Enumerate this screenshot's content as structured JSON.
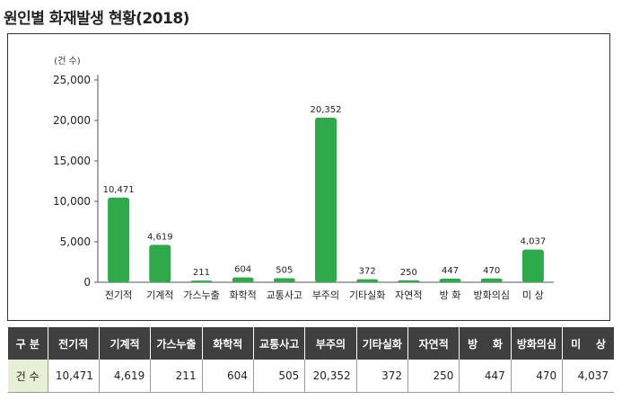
{
  "page": {
    "title": "원인별 화재발생 현황(2018)"
  },
  "chart_data": {
    "type": "bar",
    "title": "",
    "unit_label": "(건 수)",
    "xlabel": "",
    "ylabel": "",
    "categories": [
      "전기적",
      "기계적",
      "가스누출",
      "화학적",
      "교통사고",
      "부주의",
      "기타실화",
      "자연적",
      "방 화",
      "방화의심",
      "미 상"
    ],
    "values": [
      10471,
      4619,
      211,
      604,
      505,
      20352,
      372,
      250,
      447,
      470,
      4037
    ],
    "data_labels": [
      "10,471",
      "4,619",
      "211",
      "604",
      "505",
      "20,352",
      "372",
      "250",
      "447",
      "470",
      "4,037"
    ],
    "yticks": [
      "0",
      "5,000",
      "10,000",
      "15,000",
      "20,000",
      "25,000"
    ],
    "ylim": [
      0,
      25000
    ],
    "bar_color": "#2eaa4a",
    "grid": false,
    "legend": "none"
  },
  "table": {
    "header_label": "구 분",
    "row_label": "건 수",
    "columns": [
      "전기적",
      "기계적",
      "가스누출",
      "화학적",
      "교통사고",
      "부주의",
      "기타실화",
      "자연적",
      "방    화",
      "방화의심",
      "미    상"
    ],
    "values": [
      "10,471",
      "4,619",
      "211",
      "604",
      "505",
      "20,352",
      "372",
      "250",
      "447",
      "470",
      "4,037"
    ],
    "header_bg": "#3f3f3f",
    "row_head_bg": "#e6f0d3"
  }
}
